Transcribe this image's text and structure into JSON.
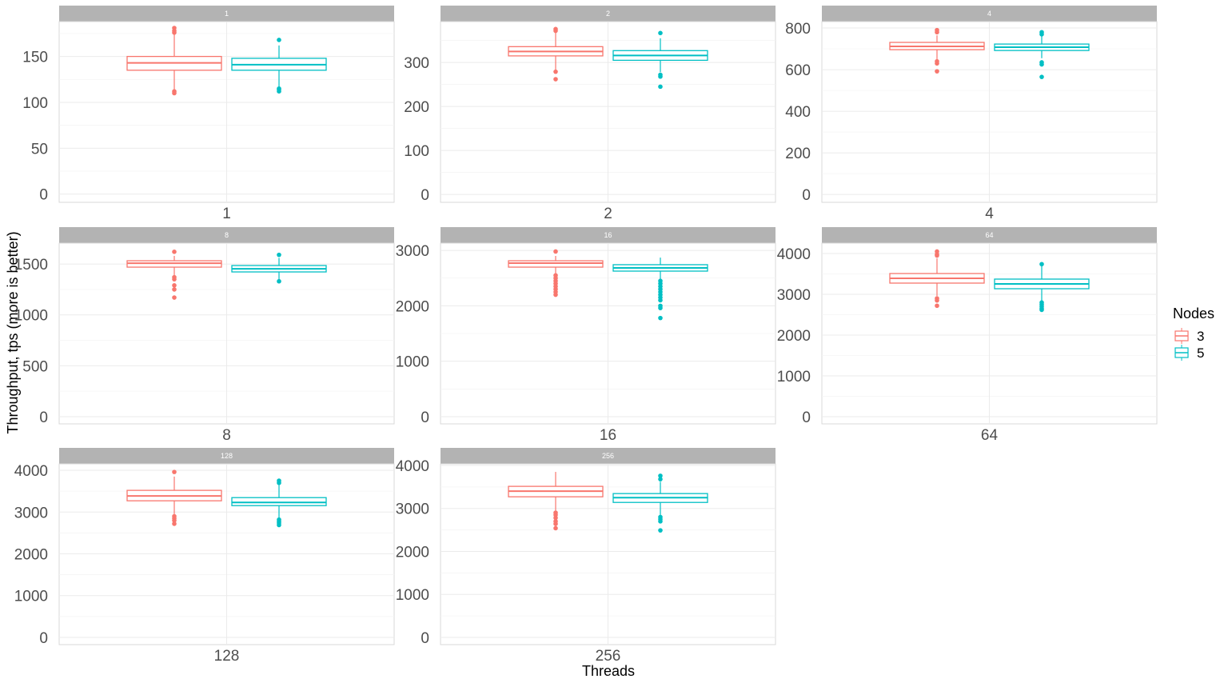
{
  "chart_data": {
    "type": "boxplot",
    "facet_by": "Threads",
    "xlabel": "Threads",
    "ylabel": "Throughput, tps (more is better)",
    "legend": {
      "title": "Nodes",
      "position": "right",
      "entries": [
        {
          "label": "3",
          "color": "#F8766D"
        },
        {
          "label": "5",
          "color": "#00BFC4"
        }
      ]
    },
    "grid": true,
    "panels": [
      {
        "strip": "1",
        "xtick": "1",
        "ylim": [
          -9,
          188
        ],
        "yticks": [
          0,
          50,
          100,
          150
        ],
        "boxes": [
          {
            "nodes": "3",
            "low": 113,
            "q1": 135,
            "median": 143,
            "q3": 150,
            "high": 175,
            "outliers": [
              176,
              178,
              181,
              110,
              112
            ]
          },
          {
            "nodes": "5",
            "low": 116,
            "q1": 135,
            "median": 141,
            "q3": 148,
            "high": 162,
            "outliers": [
              168,
              112,
              114,
              115
            ]
          }
        ]
      },
      {
        "strip": "2",
        "xtick": "2",
        "ylim": [
          -18,
          393
        ],
        "yticks": [
          0,
          100,
          200,
          300
        ],
        "boxes": [
          {
            "nodes": "3",
            "low": 282,
            "q1": 315,
            "median": 325,
            "q3": 336,
            "high": 369,
            "outliers": [
              372,
              376,
              279,
              262
            ]
          },
          {
            "nodes": "5",
            "low": 278,
            "q1": 305,
            "median": 316,
            "q3": 327,
            "high": 355,
            "outliers": [
              367,
              272,
              268,
              245
            ]
          }
        ]
      },
      {
        "strip": "4",
        "xtick": "4",
        "ylim": [
          -38,
          831
        ],
        "yticks": [
          0,
          200,
          400,
          600,
          800
        ],
        "boxes": [
          {
            "nodes": "3",
            "low": 650,
            "q1": 696,
            "median": 712,
            "q3": 731,
            "high": 765,
            "outliers": [
              780,
              790,
              640,
              630,
              592
            ]
          },
          {
            "nodes": "5",
            "low": 655,
            "q1": 692,
            "median": 708,
            "q3": 723,
            "high": 760,
            "outliers": [
              770,
              780,
              635,
              625,
              565
            ]
          }
        ]
      },
      {
        "strip": "8",
        "xtick": "8",
        "ylim": [
          -71,
          1705
        ],
        "yticks": [
          0,
          500,
          1000,
          1500
        ],
        "boxes": [
          {
            "nodes": "3",
            "low": 1390,
            "q1": 1469,
            "median": 1508,
            "q3": 1532,
            "high": 1580,
            "outliers": [
              1620,
              1370,
              1350,
              1290,
              1250,
              1170
            ]
          },
          {
            "nodes": "5",
            "low": 1345,
            "q1": 1422,
            "median": 1453,
            "q3": 1485,
            "high": 1560,
            "outliers": [
              1590,
              1330
            ]
          }
        ]
      },
      {
        "strip": "16",
        "xtick": "16",
        "ylim": [
          -130,
          3131
        ],
        "yticks": [
          0,
          1000,
          2000,
          3000
        ],
        "boxes": [
          {
            "nodes": "3",
            "low": 2570,
            "q1": 2698,
            "median": 2770,
            "q3": 2813,
            "high": 2900,
            "outliers": [
              2980,
              2550,
              2500,
              2450,
              2400,
              2350,
              2300,
              2250,
              2200
            ]
          },
          {
            "nodes": "5",
            "low": 2470,
            "q1": 2626,
            "median": 2684,
            "q3": 2742,
            "high": 2870,
            "outliers": [
              2450,
              2400,
              2350,
              2300,
              2250,
              2200,
              2150,
              2100,
              2000,
              1960,
              1780
            ]
          }
        ]
      },
      {
        "strip": "64",
        "xtick": "64",
        "ylim": [
          -176,
          4255
        ],
        "yticks": [
          0,
          1000,
          2000,
          3000,
          4000
        ],
        "boxes": [
          {
            "nodes": "3",
            "low": 2960,
            "q1": 3275,
            "median": 3392,
            "q3": 3510,
            "high": 3880,
            "outliers": [
              4050,
              3980,
              3950,
              2900,
              2850,
              2720
            ]
          },
          {
            "nodes": "5",
            "low": 2850,
            "q1": 3137,
            "median": 3255,
            "q3": 3373,
            "high": 3700,
            "outliers": [
              3740,
              2800,
              2750,
              2700,
              2650,
              2620
            ]
          }
        ]
      },
      {
        "strip": "128",
        "xtick": "128",
        "ylim": [
          -173,
          4154
        ],
        "yticks": [
          0,
          1000,
          2000,
          3000,
          4000
        ],
        "boxes": [
          {
            "nodes": "3",
            "low": 2950,
            "q1": 3270,
            "median": 3385,
            "q3": 3520,
            "high": 3850,
            "outliers": [
              3960,
              2900,
              2850,
              2800,
              2720
            ]
          },
          {
            "nodes": "5",
            "low": 2870,
            "q1": 3154,
            "median": 3230,
            "q3": 3346,
            "high": 3650,
            "outliers": [
              3750,
              3700,
              2820,
              2780,
              2740,
              2690
            ]
          }
        ]
      },
      {
        "strip": "256",
        "xtick": "256",
        "ylim": [
          -168,
          4037
        ],
        "yticks": [
          0,
          1000,
          2000,
          3000,
          4000
        ],
        "boxes": [
          {
            "nodes": "3",
            "low": 2950,
            "q1": 3271,
            "median": 3402,
            "q3": 3514,
            "high": 3850,
            "outliers": [
              2900,
              2850,
              2780,
              2700,
              2640,
              2540
            ]
          },
          {
            "nodes": "5",
            "low": 2850,
            "q1": 3140,
            "median": 3252,
            "q3": 3346,
            "high": 3620,
            "outliers": [
              3760,
              3680,
              2800,
              2750,
              2700,
              2490
            ]
          }
        ]
      }
    ]
  }
}
